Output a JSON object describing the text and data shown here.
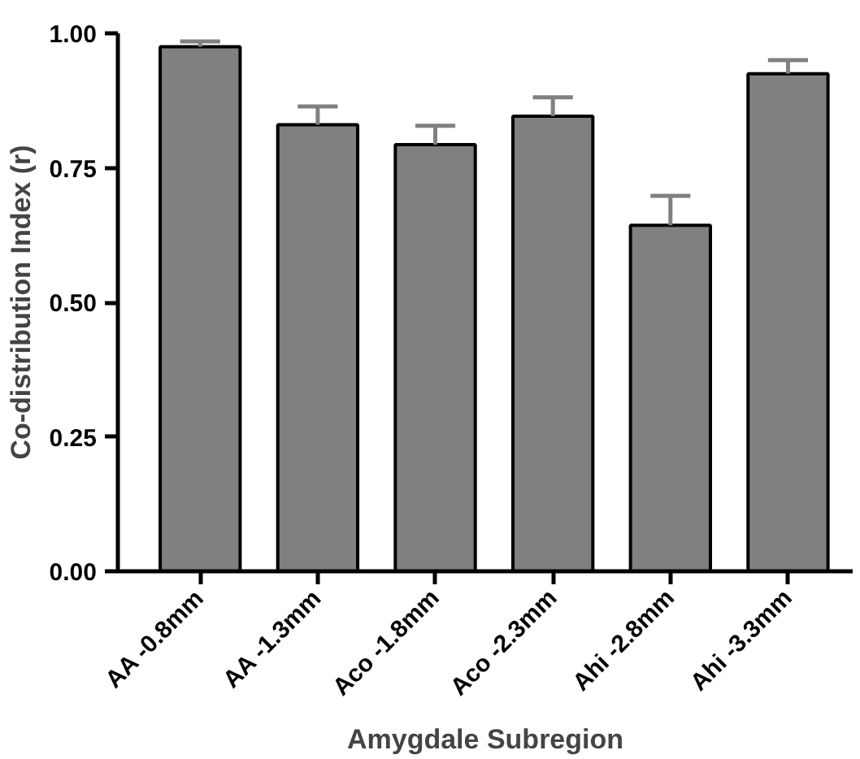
{
  "chart_data": {
    "type": "bar",
    "xlabel": "Amygdale Subregion",
    "ylabel": "Co-distribution Index (r)",
    "categories": [
      "AA -0.8mm",
      "AA -1.3mm",
      "Aco -1.8mm",
      "Aco -2.3mm",
      "Ahi -2.8mm",
      "Ahi -3.3mm"
    ],
    "values": [
      0.975,
      0.83,
      0.793,
      0.846,
      0.643,
      0.925
    ],
    "errors": [
      [
        0.975,
        0.985
      ],
      [
        0.83,
        0.864
      ],
      [
        0.793,
        0.828
      ],
      [
        0.846,
        0.881
      ],
      [
        0.643,
        0.698
      ],
      [
        0.925,
        0.95
      ]
    ],
    "color": "#808080",
    "ylim": [
      0,
      1.0
    ],
    "yticks": [
      {
        "value": 0,
        "label": "0.00"
      },
      {
        "value": 0.25,
        "label": "0.25"
      },
      {
        "value": 0.5,
        "label": "0.50"
      },
      {
        "value": 0.75,
        "label": "0.75"
      },
      {
        "value": 1.0,
        "label": "1.00"
      }
    ],
    "grid": false
  }
}
